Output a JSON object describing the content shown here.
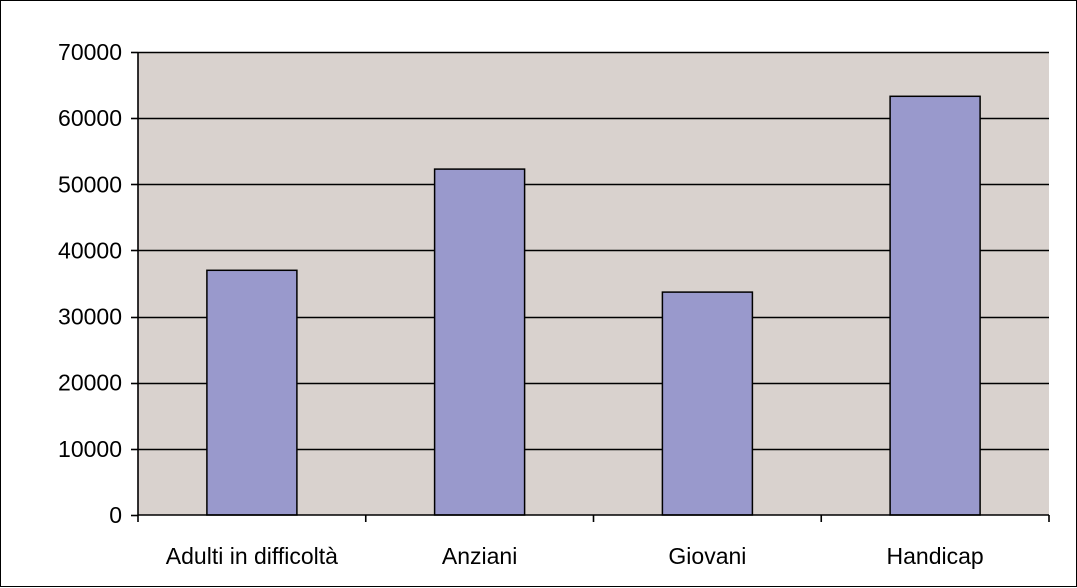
{
  "chart_data": {
    "type": "bar",
    "title": "",
    "xlabel": "",
    "ylabel": "",
    "categories": [
      "Adulti in difficoltà",
      "Anziani",
      "Giovani",
      "Handicap"
    ],
    "values": [
      37000,
      52300,
      33700,
      63300
    ],
    "ylim": [
      0,
      70000
    ],
    "yticks": [
      0,
      10000,
      20000,
      30000,
      40000,
      50000,
      60000,
      70000
    ],
    "ytick_labels": [
      "0",
      "10000",
      "20000",
      "30000",
      "40000",
      "50000",
      "60000",
      "70000"
    ],
    "grid": true,
    "legend": "none",
    "colors": {
      "bar_fill": "#9999cc",
      "bar_stroke": "#000000",
      "plot_background": "#d9d2ce",
      "gridline": "#000000",
      "axis": "#000000"
    }
  }
}
